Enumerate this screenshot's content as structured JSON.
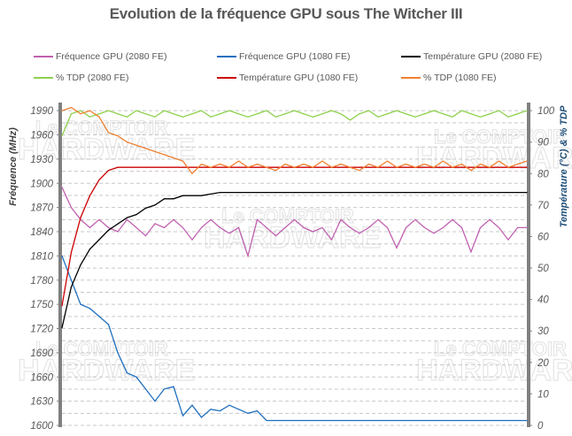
{
  "chart_data": {
    "type": "line",
    "title": "Evolution de la fréquence GPU sous The Witcher III",
    "ylabel": "Fréquence (MHz)",
    "y2label": "Température (°C) & % TDP",
    "ylim": [
      1600,
      2000
    ],
    "y2lim": [
      0,
      102.56
    ],
    "yticks": [
      1600,
      1630,
      1660,
      1690,
      1720,
      1750,
      1780,
      1810,
      1840,
      1870,
      1900,
      1930,
      1960,
      1990
    ],
    "y2ticks": [
      0,
      10,
      20,
      30,
      40,
      50,
      60,
      70,
      80,
      90,
      100
    ],
    "grid": "horizontal dashed",
    "legend": "top",
    "watermark": "Le COMPTOIR du HARDWARE",
    "series": [
      {
        "name": "Fréquence GPU (2080 FE)",
        "axis": "left",
        "color": "#c060b0",
        "values": [
          1895,
          1870,
          1855,
          1845,
          1855,
          1845,
          1840,
          1855,
          1845,
          1835,
          1850,
          1845,
          1855,
          1845,
          1830,
          1845,
          1855,
          1845,
          1838,
          1845,
          1810,
          1855,
          1845,
          1835,
          1845,
          1855,
          1845,
          1840,
          1845,
          1830,
          1855,
          1845,
          1838,
          1845,
          1855,
          1845,
          1820,
          1845,
          1855,
          1845,
          1838,
          1845,
          1855,
          1845,
          1815,
          1845,
          1855,
          1845,
          1830,
          1845,
          1845
        ]
      },
      {
        "name": "Fréquence GPU (1080 FE)",
        "axis": "left",
        "color": "#1f6fbf",
        "values": [
          1810,
          1780,
          1750,
          1745,
          1735,
          1725,
          1690,
          1665,
          1660,
          1645,
          1630,
          1645,
          1648,
          1612,
          1625,
          1610,
          1620,
          1618,
          1625,
          1620,
          1615,
          1618,
          1606,
          1606,
          1606,
          1606,
          1606,
          1606,
          1606,
          1606,
          1606,
          1606,
          1606,
          1606,
          1606,
          1606,
          1606,
          1606,
          1606,
          1606,
          1606,
          1606,
          1606,
          1606,
          1606,
          1606,
          1606,
          1606,
          1606,
          1606,
          1606
        ]
      },
      {
        "name": "Température GPU  (2080 FE)",
        "axis": "right",
        "color": "#000000",
        "values": [
          31,
          44,
          51,
          56,
          59,
          62,
          64,
          66,
          67,
          69,
          70,
          72,
          72,
          73,
          73,
          73,
          73.5,
          74,
          74,
          74,
          74,
          74,
          74,
          74,
          74,
          74,
          74,
          74,
          74,
          74,
          74,
          74,
          74,
          74,
          74,
          74,
          74,
          74,
          74,
          74,
          74,
          74,
          74,
          74,
          74,
          74,
          74,
          74,
          74,
          74,
          74
        ]
      },
      {
        "name": "% TDP (2080 FE)",
        "axis": "right",
        "color": "#8fd14f",
        "values": [
          92,
          99,
          100,
          98,
          99,
          100,
          99,
          98,
          100,
          99,
          98,
          100,
          99,
          98,
          99,
          100,
          98,
          99,
          100,
          99,
          98,
          99,
          100,
          98,
          99,
          100,
          99,
          98,
          99,
          100,
          99,
          97,
          99,
          100,
          98,
          99,
          100,
          99,
          98,
          99,
          100,
          99,
          98,
          100,
          99,
          98,
          99,
          100,
          98,
          99,
          100
        ]
      },
      {
        "name": "Température GPU  (1080 FE)",
        "axis": "right",
        "color": "#cc0000",
        "values": [
          38,
          55,
          66,
          73,
          78,
          81,
          82,
          82,
          82,
          82,
          82,
          82,
          82,
          82,
          82,
          82,
          82,
          82,
          82,
          82,
          82,
          82,
          82,
          82,
          82,
          82,
          82,
          82,
          82,
          82,
          82,
          82,
          82,
          82,
          82,
          82,
          82,
          82,
          82,
          82,
          82,
          82,
          82,
          82,
          82,
          82,
          82,
          82,
          82,
          82,
          82
        ]
      },
      {
        "name": "% TDP (1080 FE)",
        "axis": "right",
        "color": "#f08030",
        "values": [
          100,
          101,
          99,
          100,
          98,
          93,
          92,
          90,
          89,
          88,
          87,
          86,
          85,
          84,
          80,
          83,
          82,
          83,
          82,
          84,
          82,
          83,
          82,
          81,
          83,
          82,
          83,
          82,
          84,
          82,
          83,
          82,
          81,
          83,
          82,
          84,
          82,
          83,
          82,
          83,
          82,
          84,
          82,
          83,
          81,
          83,
          82,
          84,
          82,
          83,
          84
        ]
      }
    ]
  }
}
